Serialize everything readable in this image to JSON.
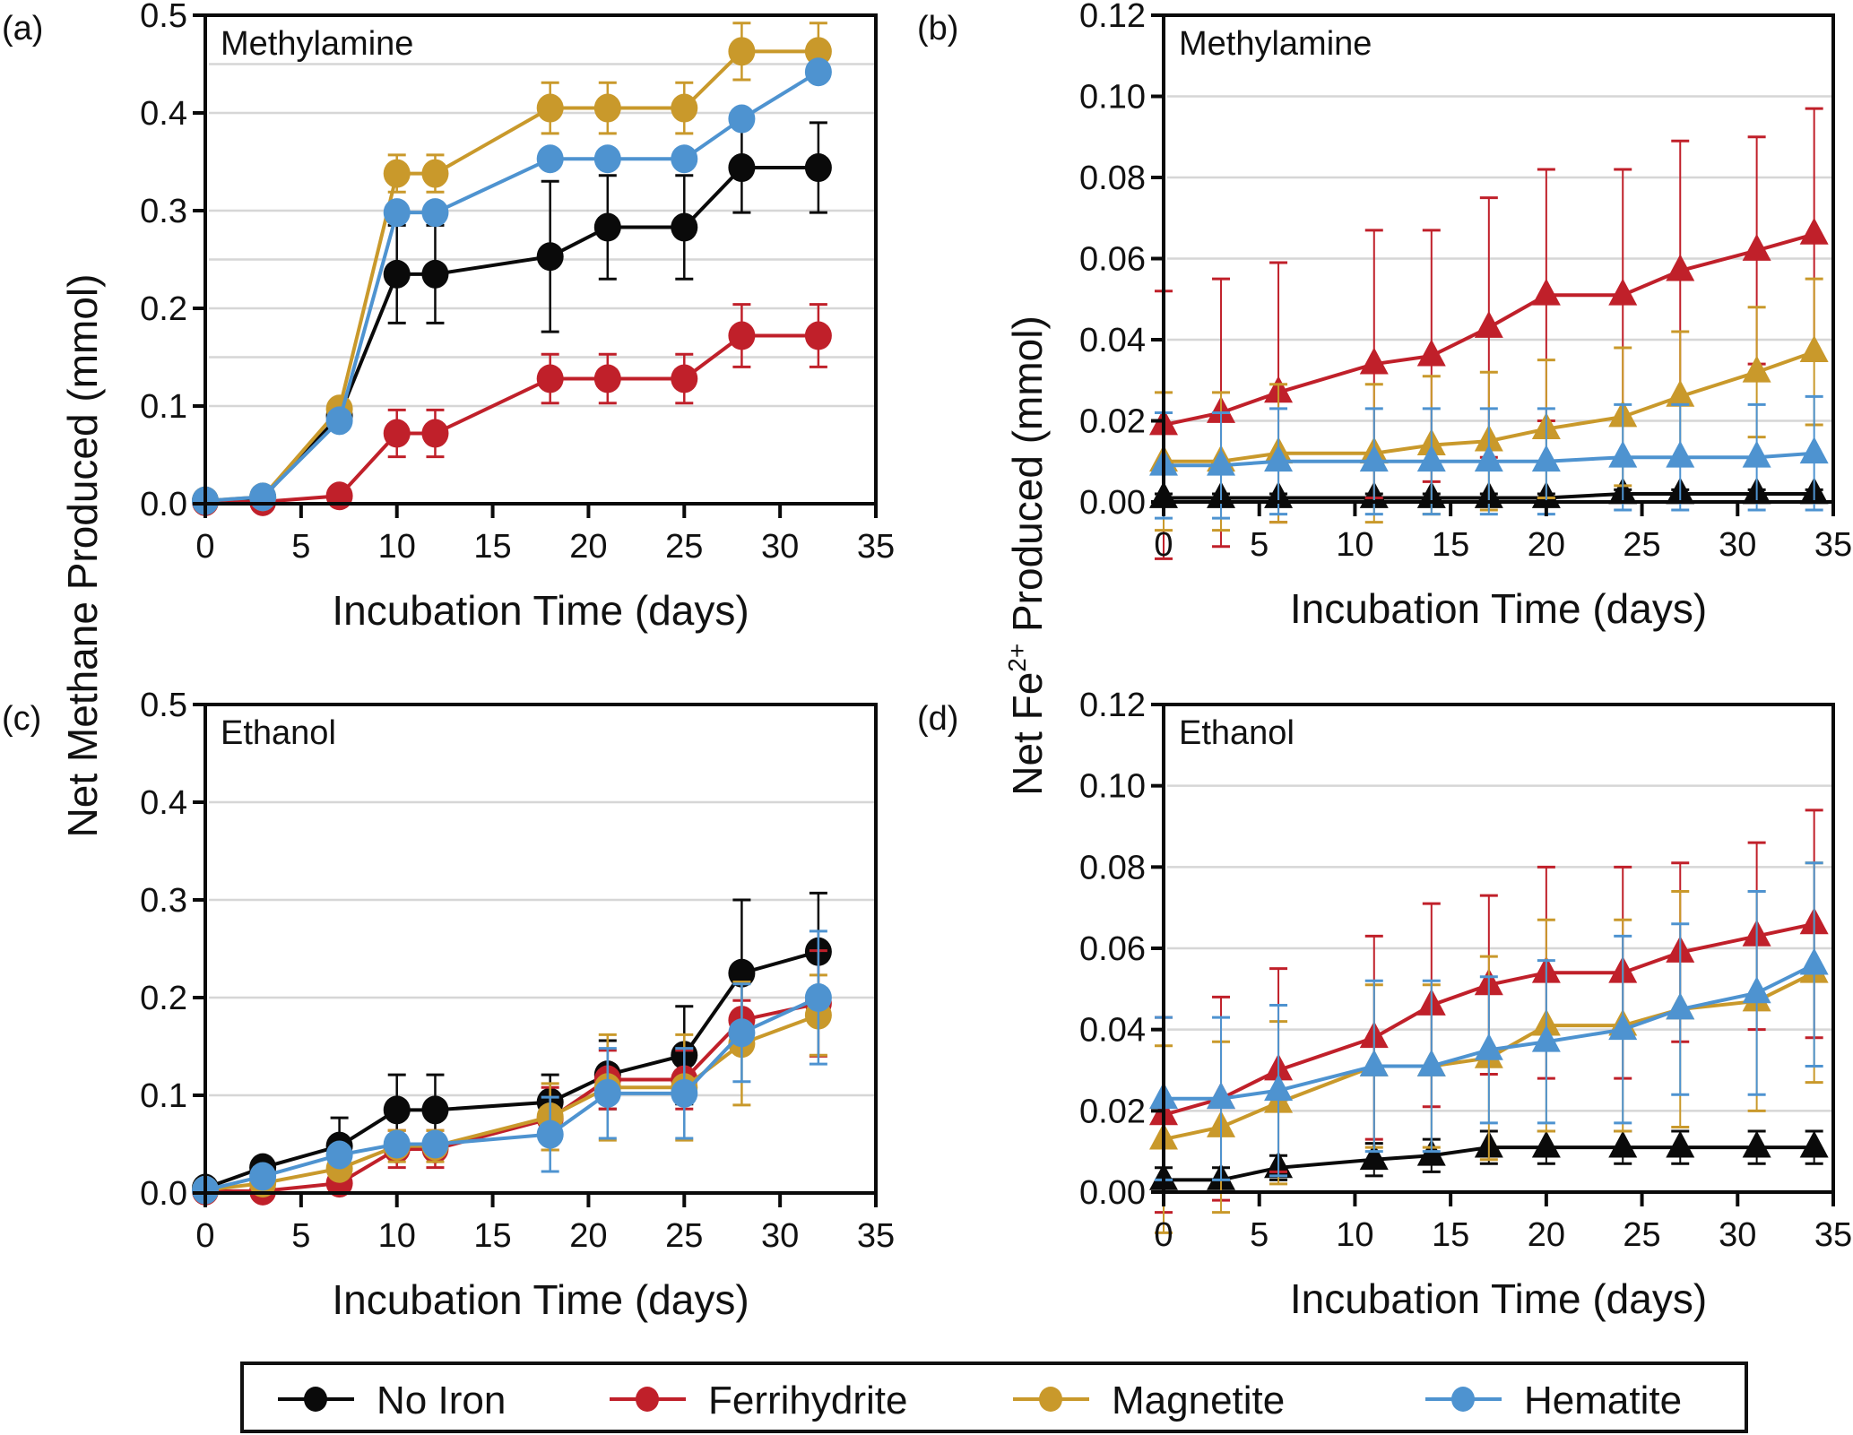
{
  "colors": {
    "No Iron": "#0a0a0a",
    "Ferrihydrite": "#c0202a",
    "Magnetite": "#c9992b",
    "Hematite": "#4e93d0",
    "grid": "#d6d6d6"
  },
  "y_label_methane": "Net Methane Produced (mmol)",
  "y_label_fe_prefix": "Net Fe",
  "y_label_fe_sup": "2+",
  "y_label_fe_suffix": " Produced (mmol)",
  "legend": {
    "items": [
      "No Iron",
      "Ferrihydrite",
      "Magnetite",
      "Hematite"
    ]
  },
  "chart_data": [
    {
      "id": "a",
      "panel_label": "(a)",
      "type": "line",
      "title": "Methylamine",
      "xlabel": "Incubation Time (days)",
      "ylabel": "Net Methane Produced (mmol)",
      "marker": "circle",
      "xlim": [
        0,
        35
      ],
      "ylim": [
        0,
        0.5
      ],
      "xticks": [
        0,
        5,
        10,
        15,
        20,
        25,
        30,
        35
      ],
      "yticks": [
        0.0,
        0.1,
        0.2,
        0.3,
        0.4,
        0.5
      ],
      "ytick_labels": [
        "0.0",
        "0.1",
        "0.2",
        "0.3",
        "0.4",
        "0.5"
      ],
      "gridlines": [
        0.1,
        0.15,
        0.2,
        0.25,
        0.3,
        0.4,
        0.45
      ],
      "x": [
        0,
        3,
        7,
        10,
        12,
        18,
        21,
        25,
        28,
        32
      ],
      "series": [
        {
          "name": "No Iron",
          "values": [
            0.003,
            0.006,
            0.09,
            0.235,
            0.235,
            0.253,
            0.283,
            0.283,
            0.344,
            0.344
          ],
          "err": [
            0,
            0,
            0,
            0.05,
            0.05,
            0.077,
            0.053,
            0.053,
            0.046,
            0.046
          ]
        },
        {
          "name": "Ferrihydrite",
          "values": [
            0.002,
            0.002,
            0.008,
            0.072,
            0.072,
            0.128,
            0.128,
            0.128,
            0.172,
            0.172
          ],
          "err": [
            0,
            0,
            0,
            0.024,
            0.024,
            0.025,
            0.025,
            0.025,
            0.032,
            0.032
          ]
        },
        {
          "name": "Magnetite",
          "values": [
            0.003,
            0.007,
            0.097,
            0.338,
            0.338,
            0.405,
            0.405,
            0.405,
            0.463,
            0.463
          ],
          "err": [
            0,
            0,
            0,
            0.019,
            0.019,
            0.026,
            0.026,
            0.026,
            0.029,
            0.029
          ]
        },
        {
          "name": "Hematite",
          "values": [
            0.003,
            0.007,
            0.085,
            0.298,
            0.298,
            0.353,
            0.353,
            0.353,
            0.394,
            0.442
          ],
          "err": [
            0,
            0,
            0,
            0,
            0,
            0,
            0,
            0,
            0,
            0
          ]
        }
      ]
    },
    {
      "id": "b",
      "panel_label": "(b)",
      "type": "line",
      "title": "Methylamine",
      "xlabel": "Incubation Time (days)",
      "ylabel": "Net Fe2+ Produced (mmol)",
      "marker": "triangle",
      "xlim": [
        0,
        35
      ],
      "ylim": [
        0,
        0.12
      ],
      "xticks": [
        0,
        5,
        10,
        15,
        20,
        25,
        30,
        35
      ],
      "yticks": [
        0.0,
        0.02,
        0.04,
        0.06,
        0.08,
        0.1,
        0.12
      ],
      "ytick_labels": [
        "0.00",
        "0.02",
        "0.04",
        "0.06",
        "0.08",
        "0.10",
        "0.12"
      ],
      "gridlines": [
        0.02,
        0.04,
        0.06,
        0.08,
        0.1
      ],
      "x": [
        0,
        3,
        6,
        11,
        14,
        17,
        20,
        24,
        27,
        31,
        34
      ],
      "series": [
        {
          "name": "No Iron",
          "values": [
            0.001,
            0.001,
            0.001,
            0.001,
            0.001,
            0.001,
            0.001,
            0.002,
            0.002,
            0.002,
            0.002
          ],
          "err": [
            0.001,
            0.001,
            0.001,
            0.001,
            0.001,
            0.001,
            0.001,
            0.001,
            0.001,
            0.001,
            0.001
          ]
        },
        {
          "name": "Ferrihydrite",
          "values": [
            0.019,
            0.022,
            0.027,
            0.034,
            0.036,
            0.043,
            0.051,
            0.051,
            0.057,
            0.062,
            0.066
          ],
          "err": [
            0.033,
            0.033,
            0.032,
            0.033,
            0.031,
            0.032,
            0.031,
            0.031,
            0.032,
            0.028,
            0.031
          ]
        },
        {
          "name": "Magnetite",
          "values": [
            0.01,
            0.01,
            0.012,
            0.012,
            0.014,
            0.015,
            0.018,
            0.021,
            0.026,
            0.032,
            0.037
          ],
          "err": [
            0.017,
            0.017,
            0.017,
            0.017,
            0.017,
            0.017,
            0.017,
            0.017,
            0.016,
            0.016,
            0.018
          ]
        },
        {
          "name": "Hematite",
          "values": [
            0.009,
            0.009,
            0.01,
            0.01,
            0.01,
            0.01,
            0.01,
            0.011,
            0.011,
            0.011,
            0.012
          ],
          "err": [
            0.013,
            0.013,
            0.013,
            0.013,
            0.013,
            0.013,
            0.013,
            0.013,
            0.013,
            0.013,
            0.014
          ]
        }
      ]
    },
    {
      "id": "c",
      "panel_label": "(c)",
      "type": "line",
      "title": "Ethanol",
      "xlabel": "Incubation Time (days)",
      "ylabel": "Net Methane Produced (mmol)",
      "marker": "circle",
      "xlim": [
        0,
        35
      ],
      "ylim": [
        0,
        0.5
      ],
      "xticks": [
        0,
        5,
        10,
        15,
        20,
        25,
        30,
        35
      ],
      "yticks": [
        0.0,
        0.1,
        0.2,
        0.3,
        0.4,
        0.5
      ],
      "ytick_labels": [
        "0.0",
        "0.1",
        "0.2",
        "0.3",
        "0.4",
        "0.5"
      ],
      "gridlines": [
        0.1,
        0.2,
        0.3,
        0.4
      ],
      "x": [
        0,
        3,
        7,
        10,
        12,
        18,
        21,
        25,
        28,
        32
      ],
      "series": [
        {
          "name": "No Iron",
          "values": [
            0.005,
            0.026,
            0.048,
            0.085,
            0.085,
            0.093,
            0.121,
            0.141,
            0.225,
            0.247
          ],
          "err": [
            0,
            0,
            0.029,
            0.036,
            0.036,
            0.028,
            0.035,
            0.05,
            0.075,
            0.06
          ]
        },
        {
          "name": "Ferrihydrite",
          "values": [
            0.002,
            0.002,
            0.01,
            0.045,
            0.045,
            0.076,
            0.116,
            0.116,
            0.177,
            0.194
          ],
          "err": [
            0,
            0,
            0,
            0.019,
            0.019,
            0.032,
            0.03,
            0.03,
            0.02,
            0.054
          ]
        },
        {
          "name": "Magnetite",
          "values": [
            0.003,
            0.01,
            0.025,
            0.048,
            0.048,
            0.078,
            0.108,
            0.108,
            0.153,
            0.182
          ],
          "err": [
            0,
            0,
            0,
            0.016,
            0.016,
            0.034,
            0.054,
            0.054,
            0.063,
            0.041
          ]
        },
        {
          "name": "Hematite",
          "values": [
            0.003,
            0.017,
            0.039,
            0.05,
            0.05,
            0.06,
            0.102,
            0.102,
            0.164,
            0.2
          ],
          "err": [
            0,
            0,
            0,
            0,
            0,
            0.038,
            0.046,
            0.046,
            0.05,
            0.068
          ]
        }
      ]
    },
    {
      "id": "d",
      "panel_label": "(d)",
      "type": "line",
      "title": "Ethanol",
      "xlabel": "Incubation Time (days)",
      "ylabel": "Net Fe2+ Produced (mmol)",
      "marker": "triangle",
      "xlim": [
        0,
        35
      ],
      "ylim": [
        0,
        0.12
      ],
      "xticks": [
        0,
        5,
        10,
        15,
        20,
        25,
        30,
        35
      ],
      "yticks": [
        0.0,
        0.02,
        0.04,
        0.06,
        0.08,
        0.1,
        0.12
      ],
      "ytick_labels": [
        "0.00",
        "0.02",
        "0.04",
        "0.06",
        "0.08",
        "0.10",
        "0.12"
      ],
      "gridlines": [
        0.02,
        0.04,
        0.06,
        0.08,
        0.1
      ],
      "x": [
        0,
        3,
        6,
        11,
        14,
        17,
        20,
        24,
        27,
        31,
        34
      ],
      "series": [
        {
          "name": "No Iron",
          "values": [
            0.003,
            0.003,
            0.006,
            0.008,
            0.009,
            0.011,
            0.011,
            0.011,
            0.011,
            0.011,
            0.011
          ],
          "err": [
            0.003,
            0.003,
            0.003,
            0.004,
            0.004,
            0.004,
            0.004,
            0.004,
            0.004,
            0.004,
            0.004
          ]
        },
        {
          "name": "Ferrihydrite",
          "values": [
            0.019,
            0.023,
            0.03,
            0.038,
            0.046,
            0.051,
            0.054,
            0.054,
            0.059,
            0.063,
            0.066
          ],
          "err": [
            0.024,
            0.025,
            0.025,
            0.025,
            0.025,
            0.022,
            0.026,
            0.026,
            0.022,
            0.023,
            0.028
          ]
        },
        {
          "name": "Magnetite",
          "values": [
            0.013,
            0.016,
            0.022,
            0.031,
            0.031,
            0.033,
            0.041,
            0.041,
            0.045,
            0.047,
            0.054
          ],
          "err": [
            0.023,
            0.021,
            0.02,
            0.02,
            0.02,
            0.025,
            0.026,
            0.026,
            0.029,
            0.027,
            0.027
          ]
        },
        {
          "name": "Hematite",
          "values": [
            0.023,
            0.023,
            0.025,
            0.031,
            0.031,
            0.035,
            0.037,
            0.04,
            0.045,
            0.049,
            0.056
          ],
          "err": [
            0.02,
            0.02,
            0.021,
            0.021,
            0.021,
            0.018,
            0.02,
            0.023,
            0.021,
            0.025,
            0.025
          ]
        }
      ]
    }
  ]
}
